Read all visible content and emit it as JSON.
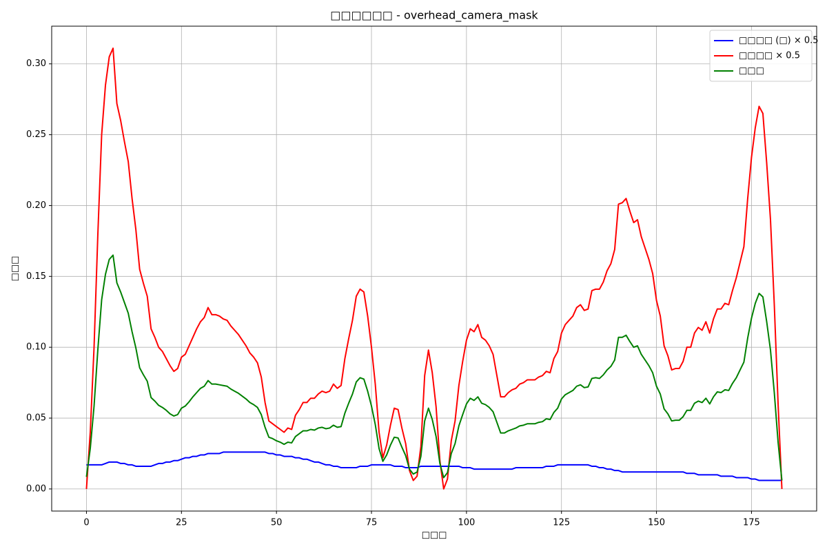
{
  "chart_data": {
    "type": "line",
    "title": "□□□□□□ - overhead_camera_mask",
    "xlabel": "□□□",
    "ylabel": "□□□",
    "x": [
      0,
      1,
      2,
      3,
      4,
      5,
      6,
      7,
      8,
      9,
      10,
      11,
      12,
      13,
      14,
      15,
      16,
      17,
      18,
      19,
      20,
      21,
      22,
      23,
      24,
      25,
      26,
      27,
      28,
      29,
      30,
      31,
      32,
      33,
      34,
      35,
      36,
      37,
      38,
      39,
      40,
      41,
      42,
      43,
      44,
      45,
      46,
      47,
      48,
      49,
      50,
      51,
      52,
      53,
      54,
      55,
      56,
      57,
      58,
      59,
      60,
      61,
      62,
      63,
      64,
      65,
      66,
      67,
      68,
      69,
      70,
      71,
      72,
      73,
      74,
      75,
      76,
      77,
      78,
      79,
      80,
      81,
      82,
      83,
      84,
      85,
      86,
      87,
      88,
      89,
      90,
      91,
      92,
      93,
      94,
      95,
      96,
      97,
      98,
      99,
      100,
      101,
      102,
      103,
      104,
      105,
      106,
      107,
      108,
      109,
      110,
      111,
      112,
      113,
      114,
      115,
      116,
      117,
      118,
      119,
      120,
      121,
      122,
      123,
      124,
      125,
      126,
      127,
      128,
      129,
      130,
      131,
      132,
      133,
      134,
      135,
      136,
      137,
      138,
      139,
      140,
      141,
      142,
      143,
      144,
      145,
      146,
      147,
      148,
      149,
      150,
      151,
      152,
      153,
      154,
      155,
      156,
      157,
      158,
      159,
      160,
      161,
      162,
      163,
      164,
      165,
      166,
      167,
      168,
      169,
      170,
      171,
      172,
      173,
      174,
      175,
      176,
      177,
      178,
      179,
      180,
      181,
      182,
      183
    ],
    "series": [
      {
        "name": "□□□□ (□) × 0.5",
        "color": "#0000ff",
        "values": [
          0.017,
          0.017,
          0.017,
          0.017,
          0.017,
          0.018,
          0.019,
          0.019,
          0.019,
          0.018,
          0.018,
          0.017,
          0.017,
          0.016,
          0.016,
          0.016,
          0.016,
          0.016,
          0.017,
          0.018,
          0.018,
          0.019,
          0.019,
          0.02,
          0.02,
          0.021,
          0.022,
          0.022,
          0.023,
          0.023,
          0.024,
          0.024,
          0.025,
          0.025,
          0.025,
          0.025,
          0.026,
          0.026,
          0.026,
          0.026,
          0.026,
          0.026,
          0.026,
          0.026,
          0.026,
          0.026,
          0.026,
          0.026,
          0.025,
          0.025,
          0.024,
          0.024,
          0.023,
          0.023,
          0.023,
          0.022,
          0.022,
          0.021,
          0.021,
          0.02,
          0.019,
          0.019,
          0.018,
          0.017,
          0.017,
          0.016,
          0.016,
          0.015,
          0.015,
          0.015,
          0.015,
          0.015,
          0.016,
          0.016,
          0.016,
          0.017,
          0.017,
          0.017,
          0.017,
          0.017,
          0.017,
          0.016,
          0.016,
          0.016,
          0.015,
          0.015,
          0.015,
          0.015,
          0.016,
          0.016,
          0.016,
          0.016,
          0.016,
          0.016,
          0.016,
          0.016,
          0.016,
          0.016,
          0.016,
          0.015,
          0.015,
          0.015,
          0.014,
          0.014,
          0.014,
          0.014,
          0.014,
          0.014,
          0.014,
          0.014,
          0.014,
          0.014,
          0.014,
          0.015,
          0.015,
          0.015,
          0.015,
          0.015,
          0.015,
          0.015,
          0.015,
          0.016,
          0.016,
          0.016,
          0.017,
          0.017,
          0.017,
          0.017,
          0.017,
          0.017,
          0.017,
          0.017,
          0.017,
          0.016,
          0.016,
          0.015,
          0.015,
          0.014,
          0.014,
          0.013,
          0.013,
          0.012,
          0.012,
          0.012,
          0.012,
          0.012,
          0.012,
          0.012,
          0.012,
          0.012,
          0.012,
          0.012,
          0.012,
          0.012,
          0.012,
          0.012,
          0.012,
          0.012,
          0.011,
          0.011,
          0.011,
          0.01,
          0.01,
          0.01,
          0.01,
          0.01,
          0.01,
          0.009,
          0.009,
          0.009,
          0.009,
          0.008,
          0.008,
          0.008,
          0.008,
          0.007,
          0.007,
          0.006,
          0.006,
          0.006,
          0.006,
          0.006,
          0.006,
          0.006
        ]
      },
      {
        "name": "□□□□ × 0.5",
        "color": "#ff0000",
        "values": [
          0.0,
          0.04,
          0.1,
          0.18,
          0.25,
          0.285,
          0.305,
          0.311,
          0.272,
          0.26,
          0.245,
          0.231,
          0.205,
          0.183,
          0.155,
          0.145,
          0.136,
          0.113,
          0.107,
          0.1,
          0.097,
          0.092,
          0.087,
          0.083,
          0.085,
          0.093,
          0.095,
          0.101,
          0.107,
          0.113,
          0.118,
          0.121,
          0.128,
          0.123,
          0.123,
          0.122,
          0.12,
          0.119,
          0.115,
          0.112,
          0.109,
          0.105,
          0.101,
          0.096,
          0.093,
          0.089,
          0.079,
          0.061,
          0.048,
          0.046,
          0.044,
          0.042,
          0.04,
          0.043,
          0.042,
          0.052,
          0.056,
          0.061,
          0.061,
          0.064,
          0.064,
          0.067,
          0.069,
          0.068,
          0.069,
          0.074,
          0.071,
          0.073,
          0.092,
          0.106,
          0.119,
          0.136,
          0.141,
          0.139,
          0.122,
          0.1,
          0.074,
          0.04,
          0.022,
          0.031,
          0.045,
          0.057,
          0.056,
          0.043,
          0.032,
          0.013,
          0.006,
          0.009,
          0.03,
          0.08,
          0.098,
          0.082,
          0.058,
          0.02,
          0.0,
          0.007,
          0.034,
          0.048,
          0.073,
          0.09,
          0.105,
          0.113,
          0.111,
          0.116,
          0.107,
          0.105,
          0.101,
          0.095,
          0.08,
          0.065,
          0.065,
          0.068,
          0.07,
          0.071,
          0.074,
          0.075,
          0.077,
          0.077,
          0.077,
          0.079,
          0.08,
          0.083,
          0.082,
          0.092,
          0.097,
          0.11,
          0.116,
          0.119,
          0.122,
          0.128,
          0.13,
          0.126,
          0.127,
          0.14,
          0.141,
          0.141,
          0.146,
          0.154,
          0.159,
          0.169,
          0.201,
          0.202,
          0.205,
          0.196,
          0.188,
          0.19,
          0.178,
          0.17,
          0.162,
          0.152,
          0.133,
          0.122,
          0.101,
          0.094,
          0.084,
          0.085,
          0.085,
          0.09,
          0.1,
          0.1,
          0.11,
          0.114,
          0.112,
          0.118,
          0.11,
          0.12,
          0.127,
          0.127,
          0.131,
          0.13,
          0.14,
          0.149,
          0.16,
          0.171,
          0.205,
          0.234,
          0.255,
          0.27,
          0.265,
          0.23,
          0.19,
          0.13,
          0.06,
          0.0
        ]
      },
      {
        "name": "□□□",
        "color": "#008000",
        "values": [
          0.0085,
          0.0285,
          0.0585,
          0.0985,
          0.1335,
          0.1515,
          0.162,
          0.165,
          0.1455,
          0.139,
          0.1315,
          0.124,
          0.111,
          0.0995,
          0.0855,
          0.0805,
          0.076,
          0.0645,
          0.062,
          0.059,
          0.0575,
          0.0555,
          0.053,
          0.0515,
          0.0525,
          0.057,
          0.0585,
          0.0615,
          0.065,
          0.068,
          0.071,
          0.0725,
          0.0765,
          0.074,
          0.074,
          0.0735,
          0.073,
          0.0725,
          0.0705,
          0.069,
          0.0675,
          0.0655,
          0.0635,
          0.061,
          0.0595,
          0.0575,
          0.0525,
          0.0435,
          0.0365,
          0.0355,
          0.034,
          0.033,
          0.0315,
          0.033,
          0.0325,
          0.037,
          0.039,
          0.041,
          0.041,
          0.042,
          0.0415,
          0.043,
          0.0435,
          0.0425,
          0.043,
          0.045,
          0.0435,
          0.044,
          0.0535,
          0.0605,
          0.067,
          0.0755,
          0.0785,
          0.0775,
          0.069,
          0.0585,
          0.0455,
          0.0285,
          0.0195,
          0.024,
          0.031,
          0.0365,
          0.036,
          0.0295,
          0.0235,
          0.014,
          0.0105,
          0.012,
          0.023,
          0.048,
          0.057,
          0.049,
          0.037,
          0.018,
          0.008,
          0.0115,
          0.025,
          0.032,
          0.0445,
          0.0525,
          0.06,
          0.064,
          0.0625,
          0.065,
          0.0605,
          0.0595,
          0.0575,
          0.0545,
          0.047,
          0.0395,
          0.0395,
          0.041,
          0.042,
          0.043,
          0.0445,
          0.045,
          0.046,
          0.046,
          0.046,
          0.047,
          0.0475,
          0.0495,
          0.049,
          0.054,
          0.057,
          0.0635,
          0.0665,
          0.068,
          0.0695,
          0.0725,
          0.0735,
          0.0715,
          0.072,
          0.078,
          0.0785,
          0.078,
          0.0805,
          0.084,
          0.0865,
          0.091,
          0.107,
          0.107,
          0.1085,
          0.104,
          0.1,
          0.101,
          0.095,
          0.091,
          0.087,
          0.082,
          0.0725,
          0.067,
          0.0565,
          0.053,
          0.048,
          0.0485,
          0.0485,
          0.051,
          0.0555,
          0.0555,
          0.0605,
          0.062,
          0.061,
          0.064,
          0.06,
          0.065,
          0.0685,
          0.068,
          0.07,
          0.0695,
          0.0745,
          0.0785,
          0.084,
          0.0895,
          0.1065,
          0.1205,
          0.131,
          0.138,
          0.1355,
          0.118,
          0.098,
          0.068,
          0.033,
          0.006
        ]
      }
    ],
    "xlim": [
      -9.15,
      192.15
    ],
    "ylim": [
      -0.0156,
      0.3266
    ],
    "xticks": [
      0,
      25,
      50,
      75,
      100,
      125,
      150,
      175
    ],
    "yticks": [
      {
        "value": 0,
        "label": "0.00"
      },
      0.05,
      {
        "value": 0.1,
        "label": "0.10"
      },
      0.15,
      {
        "value": 0.2,
        "label": "0.20"
      },
      0.25,
      {
        "value": 0.3,
        "label": "0.30"
      }
    ],
    "grid": true,
    "legend": "upper right"
  }
}
